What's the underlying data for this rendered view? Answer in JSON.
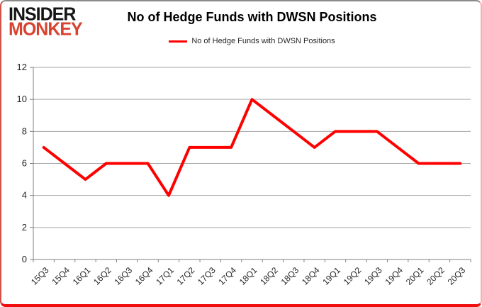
{
  "logo": {
    "line1": "INSIDER",
    "line2": "MONKEY"
  },
  "chart_data": {
    "type": "line",
    "title": "No of Hedge Funds with DWSN Positions",
    "categories": [
      "15Q3",
      "15Q4",
      "16Q1",
      "16Q2",
      "16Q3",
      "16Q4",
      "17Q1",
      "17Q2",
      "17Q3",
      "17Q4",
      "18Q1",
      "18Q2",
      "18Q3",
      "18Q4",
      "19Q1",
      "19Q2",
      "19Q3",
      "19Q4",
      "20Q1",
      "20Q2",
      "20Q3"
    ],
    "series": [
      {
        "name": "No of Hedge Funds with DWSN Positions",
        "color": "#ff0000",
        "values": [
          7,
          6,
          5,
          6,
          6,
          6,
          4,
          7,
          7,
          7,
          10,
          9,
          8,
          7,
          8,
          8,
          8,
          7,
          6,
          6,
          6
        ]
      }
    ],
    "xlabel": "",
    "ylabel": "",
    "ylim": [
      0,
      12
    ],
    "ytick_step": 2,
    "yticks": [
      0,
      2,
      4,
      6,
      8,
      10,
      12
    ],
    "grid": "horizontal",
    "legend_position": "top-center",
    "colors": {
      "line": "#ff0000",
      "gridline": "#a6a6a6",
      "axis": "#808080",
      "axis_text": "#262626"
    }
  }
}
